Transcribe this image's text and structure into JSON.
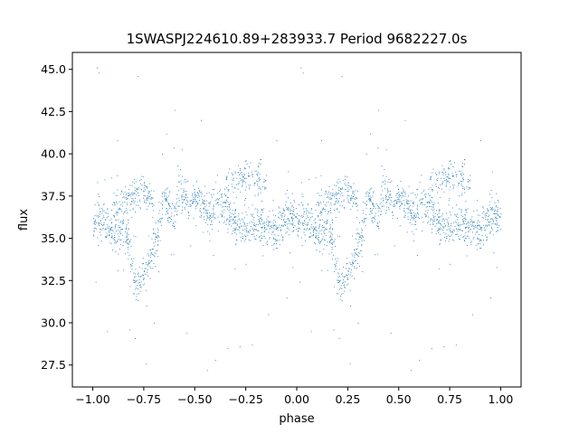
{
  "chart_data": {
    "type": "scatter",
    "title": "1SWASPJ224610.89+283933.7 Period 9682227.0s",
    "xlabel": "phase",
    "ylabel": "flux",
    "xlim": [
      -1.1,
      1.1
    ],
    "ylim": [
      26.2,
      46.0
    ],
    "xticks": [
      -1.0,
      -0.75,
      -0.5,
      -0.25,
      0.0,
      0.25,
      0.5,
      0.75,
      1.0
    ],
    "xtick_labels": [
      "−1.00",
      "−0.75",
      "−0.50",
      "−0.25",
      "0.00",
      "0.25",
      "0.50",
      "0.75",
      "1.00"
    ],
    "yticks": [
      27.5,
      30.0,
      32.5,
      35.0,
      37.5,
      40.0,
      42.5,
      45.0
    ],
    "ytick_labels": [
      "27.5",
      "30.0",
      "32.5",
      "35.0",
      "37.5",
      "40.0",
      "42.5",
      "45.0"
    ],
    "grid": false,
    "marker_color": "#1f77b4",
    "series": [
      {
        "phase_flux_profile": [
          [
            0.0,
            36.3
          ],
          [
            0.02,
            36.4
          ],
          [
            0.05,
            36.2
          ],
          [
            0.08,
            35.6
          ],
          [
            0.12,
            35.2
          ],
          [
            0.15,
            35.4
          ],
          [
            0.18,
            34.9
          ],
          [
            0.2,
            32.5
          ],
          [
            0.22,
            32.2
          ],
          [
            0.25,
            33.0
          ],
          [
            0.28,
            33.8
          ],
          [
            0.31,
            34.6
          ],
          [
            0.33,
            36.0
          ],
          [
            0.35,
            37.5
          ],
          [
            0.38,
            36.5
          ],
          [
            0.4,
            36.2
          ],
          [
            0.42,
            37.8
          ],
          [
            0.45,
            37.5
          ],
          [
            0.48,
            36.8
          ],
          [
            0.5,
            37.5
          ],
          [
            0.53,
            37.2
          ],
          [
            0.55,
            36.8
          ],
          [
            0.58,
            36.5
          ],
          [
            0.6,
            37.2
          ],
          [
            0.63,
            37.0
          ],
          [
            0.66,
            36.6
          ],
          [
            0.69,
            36.1
          ],
          [
            0.72,
            35.6
          ],
          [
            0.75,
            35.6
          ],
          [
            0.78,
            35.8
          ],
          [
            0.8,
            35.7
          ],
          [
            0.83,
            35.9
          ],
          [
            0.86,
            35.6
          ],
          [
            0.89,
            35.5
          ],
          [
            0.92,
            36.0
          ],
          [
            0.95,
            36.2
          ],
          [
            0.98,
            36.4
          ],
          [
            1.0,
            36.3
          ]
        ],
        "phase_flux_upper_branch": [
          [
            0.1,
            36.5
          ],
          [
            0.15,
            37.0
          ],
          [
            0.2,
            37.5
          ],
          [
            0.25,
            37.8
          ],
          [
            0.3,
            37.0
          ],
          [
            0.65,
            38.2
          ],
          [
            0.7,
            38.5
          ],
          [
            0.75,
            38.8
          ],
          [
            0.8,
            38.6
          ],
          [
            0.85,
            38.2
          ]
        ],
        "phase_flux_outliers": [
          [
            0.02,
            45.1
          ],
          [
            0.03,
            44.8
          ],
          [
            0.22,
            44.6
          ],
          [
            0.34,
            40.0
          ],
          [
            0.36,
            41.2
          ],
          [
            0.4,
            42.6
          ],
          [
            0.53,
            42.0
          ],
          [
            0.9,
            40.8
          ],
          [
            0.07,
            29.5
          ],
          [
            0.18,
            29.6
          ],
          [
            0.46,
            29.4
          ],
          [
            0.66,
            28.5
          ],
          [
            0.78,
            28.7
          ],
          [
            0.72,
            28.6
          ],
          [
            0.26,
            27.6
          ],
          [
            0.56,
            27.2
          ],
          [
            0.3,
            30.0
          ],
          [
            0.95,
            31.5
          ],
          [
            0.86,
            30.5
          ],
          [
            0.12,
            40.8
          ],
          [
            0.6,
            27.8
          ]
        ]
      }
    ]
  }
}
